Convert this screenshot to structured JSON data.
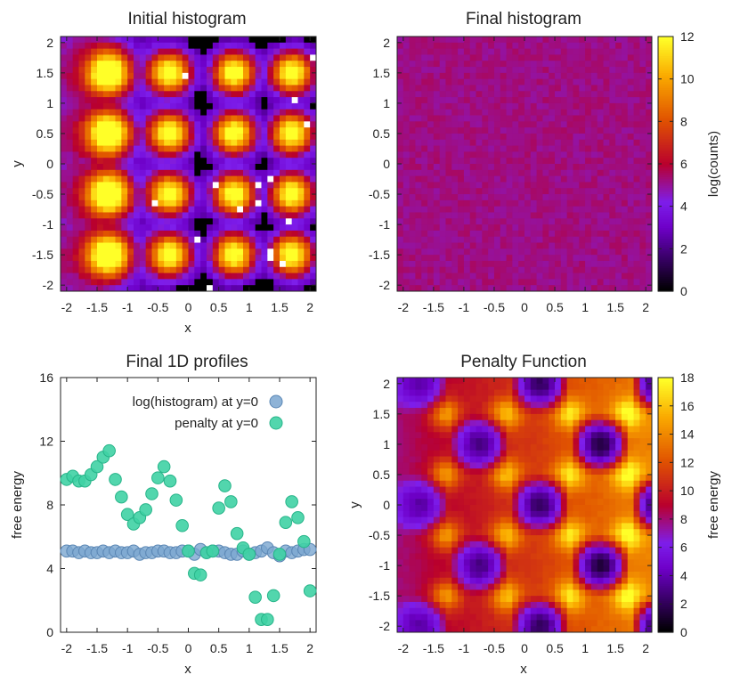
{
  "colors": {
    "hist_blue": "#7aa6d0",
    "hist_blue_edge": "#5a86b4",
    "penalty_teal": "#3fd1a4",
    "penalty_teal_edge": "#27b489",
    "axis": "#222222"
  },
  "chart_data": [
    {
      "id": "initial",
      "type": "heatmap",
      "title": "Initial histogram",
      "xlabel": "x",
      "ylabel": "y",
      "xlim": [
        -2.1,
        2.1
      ],
      "ylim": [
        -2.1,
        2.1
      ],
      "xticks": [
        "-2",
        "-1.5",
        "-1",
        "-0.5",
        "0",
        "0.5",
        "1",
        "1.5",
        "2"
      ],
      "yticks": [
        "2",
        "1.5",
        "1",
        "0.5",
        "0",
        "-0.5",
        "-1",
        "-1.5",
        "-2"
      ],
      "shared_colorbar": "final",
      "wells_x": [
        -1.3,
        -0.3,
        0.75,
        1.7
      ],
      "wells_y": [
        1.5,
        0.5,
        -0.5,
        -1.5
      ],
      "peak_log_counts": 9.5
    },
    {
      "id": "final",
      "type": "heatmap",
      "title": "Final histogram",
      "xlabel": "",
      "ylabel": "",
      "xlim": [
        -2.1,
        2.1
      ],
      "ylim": [
        -2.1,
        2.1
      ],
      "xticks": [
        "-2",
        "-1.5",
        "-1",
        "-0.5",
        "0",
        "0.5",
        "1",
        "1.5",
        "2"
      ],
      "yticks": [
        "2",
        "1.5",
        "1",
        "0.5",
        "0",
        "-0.5",
        "-1",
        "-1.5",
        "-2"
      ],
      "uniform_log_counts": 5.2,
      "colorbar": {
        "label": "log(counts)",
        "range": [
          0,
          12
        ],
        "ticks": [
          "12",
          "10",
          "8",
          "6",
          "4",
          "2",
          "0"
        ]
      }
    },
    {
      "id": "profiles",
      "type": "scatter",
      "title": "Final 1D profiles",
      "xlabel": "x",
      "ylabel": "free energy",
      "xlim": [
        -2.1,
        2.1
      ],
      "ylim": [
        0,
        16
      ],
      "xticks": [
        "-2",
        "-1.5",
        "-1",
        "-0.5",
        "0",
        "0.5",
        "1",
        "1.5",
        "2"
      ],
      "yticks": [
        "16",
        "12",
        "8",
        "4",
        "0"
      ],
      "legend_position": "top-right",
      "series": [
        {
          "name": "log(histogram) at y=0",
          "x": [
            -2.0,
            -1.9,
            -1.8,
            -1.7,
            -1.6,
            -1.5,
            -1.4,
            -1.3,
            -1.2,
            -1.1,
            -1.0,
            -0.9,
            -0.8,
            -0.7,
            -0.6,
            -0.5,
            -0.4,
            -0.3,
            -0.2,
            -0.1,
            0.0,
            0.1,
            0.2,
            0.3,
            0.4,
            0.5,
            0.6,
            0.7,
            0.8,
            0.9,
            1.0,
            1.1,
            1.2,
            1.3,
            1.4,
            1.5,
            1.6,
            1.7,
            1.8,
            1.9,
            2.0
          ],
          "y": [
            5.1,
            5.1,
            5.0,
            5.1,
            5.0,
            5.0,
            5.1,
            5.0,
            5.1,
            5.0,
            5.0,
            5.1,
            4.9,
            5.0,
            5.0,
            5.1,
            5.1,
            5.0,
            5.0,
            5.1,
            5.1,
            4.9,
            5.2,
            5.0,
            5.1,
            5.1,
            5.0,
            4.9,
            4.9,
            5.1,
            4.9,
            5.0,
            5.1,
            5.3,
            5.0,
            4.8,
            5.1,
            5.0,
            5.1,
            5.2,
            5.2
          ]
        },
        {
          "name": "penalty at y=0",
          "x": [
            -2.0,
            -1.9,
            -1.8,
            -1.7,
            -1.6,
            -1.5,
            -1.4,
            -1.3,
            -1.2,
            -1.1,
            -1.0,
            -0.9,
            -0.8,
            -0.7,
            -0.6,
            -0.5,
            -0.4,
            -0.3,
            -0.2,
            -0.1,
            0.0,
            0.1,
            0.2,
            0.3,
            0.4,
            0.5,
            0.6,
            0.7,
            0.8,
            0.9,
            1.0,
            1.1,
            1.2,
            1.3,
            1.4,
            1.5,
            1.6,
            1.7,
            1.8,
            1.9,
            2.0
          ],
          "y": [
            9.6,
            9.8,
            9.5,
            9.5,
            9.9,
            10.4,
            11.0,
            11.4,
            9.6,
            8.5,
            7.4,
            6.8,
            7.2,
            7.7,
            8.7,
            9.7,
            10.4,
            9.5,
            8.3,
            6.7,
            5.1,
            3.7,
            3.6,
            5.0,
            5.1,
            7.8,
            9.2,
            8.2,
            6.2,
            5.3,
            4.9,
            2.2,
            0.8,
            0.8,
            2.3,
            4.9,
            6.9,
            8.2,
            7.2,
            5.7,
            2.6
          ]
        }
      ]
    },
    {
      "id": "penalty",
      "type": "heatmap",
      "title": "Penalty Function",
      "xlabel": "x",
      "ylabel": "y",
      "xlim": [
        -2.1,
        2.1
      ],
      "ylim": [
        -2.1,
        2.1
      ],
      "xticks": [
        "-2",
        "-1.5",
        "-1",
        "-0.5",
        "0",
        "0.5",
        "1",
        "1.5",
        "2"
      ],
      "yticks": [
        "2",
        "1.5",
        "1",
        "0.5",
        "0",
        "-0.5",
        "-1",
        "-1.5",
        "-2"
      ],
      "wells_x": [
        -1.3,
        -0.3,
        0.75,
        1.7
      ],
      "wells_y": [
        1.5,
        0.5,
        -0.5,
        -1.5
      ],
      "colorbar": {
        "label": "free energy",
        "range": [
          0,
          18
        ],
        "ticks": [
          "18",
          "16",
          "14",
          "12",
          "10",
          "8",
          "6",
          "4",
          "2",
          "0"
        ]
      }
    }
  ]
}
